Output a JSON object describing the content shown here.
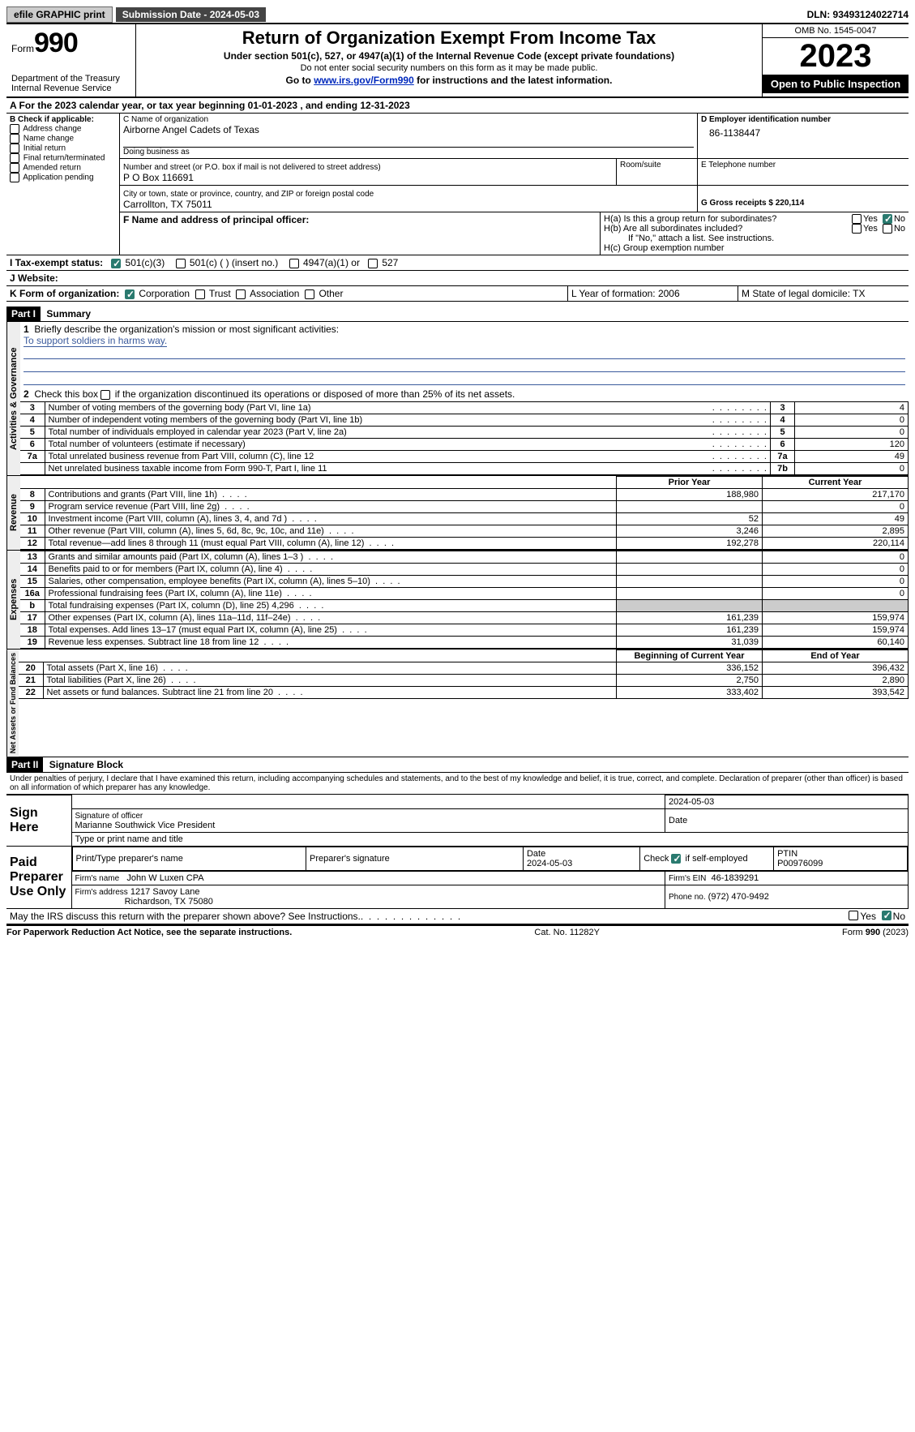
{
  "topbar": {
    "efile": "efile GRAPHIC print",
    "submission_label": "Submission Date - 2024-05-03",
    "dln_label": "DLN: 93493124022714"
  },
  "header": {
    "form_prefix": "Form",
    "form_number": "990",
    "dept": "Department of the Treasury\nInternal Revenue Service",
    "title": "Return of Organization Exempt From Income Tax",
    "sub1": "Under section 501(c), 527, or 4947(a)(1) of the Internal Revenue Code (except private foundations)",
    "sub2": "Do not enter social security numbers on this form as it may be made public.",
    "sub3_pre": "Go to ",
    "sub3_link": "www.irs.gov/Form990",
    "sub3_post": " for instructions and the latest information.",
    "omb": "OMB No. 1545-0047",
    "taxyear": "2023",
    "open_pub": "Open to Public Inspection"
  },
  "sectionA": {
    "line": "A For the 2023 calendar year, or tax year beginning 01-01-2023   , and ending 12-31-2023"
  },
  "sectionB": {
    "title": "B Check if applicable:",
    "opts": [
      "Address change",
      "Name change",
      "Initial return",
      "Final return/terminated",
      "Amended return",
      "Application pending"
    ]
  },
  "sectionC": {
    "name_label": "C Name of organization",
    "name": "Airborne Angel Cadets of Texas",
    "dba_label": "Doing business as",
    "addr_label": "Number and street (or P.O. box if mail is not delivered to street address)",
    "room_label": "Room/suite",
    "addr": "P O Box 116691",
    "city_label": "City or town, state or province, country, and ZIP or foreign postal code",
    "city": "Carrollton, TX  75011"
  },
  "sectionD": {
    "label": "D Employer identification number",
    "value": "86-1138447"
  },
  "sectionE": {
    "label": "E Telephone number"
  },
  "sectionG": {
    "label": "G Gross receipts $ 220,114"
  },
  "sectionF": {
    "label": "F  Name and address of principal officer:"
  },
  "sectionH": {
    "a": "H(a)  Is this a group return for subordinates?",
    "b": "H(b)  Are all subordinates included?",
    "bnote": "If \"No,\" attach a list. See instructions.",
    "c": "H(c)  Group exemption number",
    "yes": "Yes",
    "no": "No"
  },
  "sectionI": {
    "label": "I  Tax-exempt status:",
    "o1": "501(c)(3)",
    "o2": "501(c) (  ) (insert no.)",
    "o3": "4947(a)(1) or",
    "o4": "527"
  },
  "sectionJ": {
    "label": "J  Website:"
  },
  "sectionK": {
    "label": "K Form of organization:",
    "o1": "Corporation",
    "o2": "Trust",
    "o3": "Association",
    "o4": "Other"
  },
  "sectionL": {
    "label": "L Year of formation: 2006"
  },
  "sectionM": {
    "label": "M State of legal domicile: TX"
  },
  "partI": {
    "hdr": "Part I",
    "title": "Summary",
    "q1": "Briefly describe the organization's mission or most significant activities:",
    "mission": "To support soldiers in harms way.",
    "q2": "Check this box      if the organization discontinued its operations or disposed of more than 25% of its net assets.",
    "rows_gov": [
      {
        "n": "3",
        "d": "Number of voting members of the governing body (Part VI, line 1a)",
        "c": "3",
        "v": "4"
      },
      {
        "n": "4",
        "d": "Number of independent voting members of the governing body (Part VI, line 1b)",
        "c": "4",
        "v": "0"
      },
      {
        "n": "5",
        "d": "Total number of individuals employed in calendar year 2023 (Part V, line 2a)",
        "c": "5",
        "v": "0"
      },
      {
        "n": "6",
        "d": "Total number of volunteers (estimate if necessary)",
        "c": "6",
        "v": "120"
      },
      {
        "n": "7a",
        "d": "Total unrelated business revenue from Part VIII, column (C), line 12",
        "c": "7a",
        "v": "49"
      },
      {
        "n": "",
        "d": "Net unrelated business taxable income from Form 990-T, Part I, line 11",
        "c": "7b",
        "v": "0"
      }
    ],
    "sec_gov": "Activities & Governance",
    "sec_rev": "Revenue",
    "sec_exp": "Expenses",
    "sec_net": "Net Assets or Fund Balances",
    "col_prior": "Prior Year",
    "col_current": "Current Year",
    "rows_rev": [
      {
        "n": "8",
        "d": "Contributions and grants (Part VIII, line 1h)",
        "p": "188,980",
        "c": "217,170"
      },
      {
        "n": "9",
        "d": "Program service revenue (Part VIII, line 2g)",
        "p": "",
        "c": "0"
      },
      {
        "n": "10",
        "d": "Investment income (Part VIII, column (A), lines 3, 4, and 7d )",
        "p": "52",
        "c": "49"
      },
      {
        "n": "11",
        "d": "Other revenue (Part VIII, column (A), lines 5, 6d, 8c, 9c, 10c, and 11e)",
        "p": "3,246",
        "c": "2,895"
      },
      {
        "n": "12",
        "d": "Total revenue—add lines 8 through 11 (must equal Part VIII, column (A), line 12)",
        "p": "192,278",
        "c": "220,114"
      }
    ],
    "rows_exp": [
      {
        "n": "13",
        "d": "Grants and similar amounts paid (Part IX, column (A), lines 1–3 )",
        "p": "",
        "c": "0"
      },
      {
        "n": "14",
        "d": "Benefits paid to or for members (Part IX, column (A), line 4)",
        "p": "",
        "c": "0"
      },
      {
        "n": "15",
        "d": "Salaries, other compensation, employee benefits (Part IX, column (A), lines 5–10)",
        "p": "",
        "c": "0"
      },
      {
        "n": "16a",
        "d": "Professional fundraising fees (Part IX, column (A), line 11e)",
        "p": "",
        "c": "0"
      },
      {
        "n": "b",
        "d": "Total fundraising expenses (Part IX, column (D), line 25) 4,296",
        "p": "GREY",
        "c": "GREY"
      },
      {
        "n": "17",
        "d": "Other expenses (Part IX, column (A), lines 11a–11d, 11f–24e)",
        "p": "161,239",
        "c": "159,974"
      },
      {
        "n": "18",
        "d": "Total expenses. Add lines 13–17 (must equal Part IX, column (A), line 25)",
        "p": "161,239",
        "c": "159,974"
      },
      {
        "n": "19",
        "d": "Revenue less expenses. Subtract line 18 from line 12",
        "p": "31,039",
        "c": "60,140"
      }
    ],
    "col_beg": "Beginning of Current Year",
    "col_end": "End of Year",
    "rows_net": [
      {
        "n": "20",
        "d": "Total assets (Part X, line 16)",
        "p": "336,152",
        "c": "396,432"
      },
      {
        "n": "21",
        "d": "Total liabilities (Part X, line 26)",
        "p": "2,750",
        "c": "2,890"
      },
      {
        "n": "22",
        "d": "Net assets or fund balances. Subtract line 21 from line 20",
        "p": "333,402",
        "c": "393,542"
      }
    ]
  },
  "partII": {
    "hdr": "Part II",
    "title": "Signature Block",
    "decl": "Under penalties of perjury, I declare that I have examined this return, including accompanying schedules and statements, and to the best of my knowledge and belief, it is true, correct, and complete. Declaration of preparer (other than officer) is based on all information of which preparer has any knowledge.",
    "sign_here": "Sign Here",
    "sig_officer_label": "Signature of officer",
    "sig_officer": "Marianne Southwick  Vice President",
    "sig_type_label": "Type or print name and title",
    "sig_date": "2024-05-03",
    "date_label": "Date",
    "paid": "Paid Preparer Use Only",
    "prep_name_label": "Print/Type preparer's name",
    "prep_sig_label": "Preparer's signature",
    "prep_date": "2024-05-03",
    "self_emp": "Check         if self-employed",
    "ptin_label": "PTIN",
    "ptin": "P00976099",
    "firm_name_label": "Firm's name",
    "firm_name": "John W Luxen CPA",
    "firm_ein_label": "Firm's EIN",
    "firm_ein": "46-1839291",
    "firm_addr_label": "Firm's address",
    "firm_addr1": "1217 Savoy Lane",
    "firm_addr2": "Richardson, TX  75080",
    "phone_label": "Phone no.",
    "phone": "(972) 470-9492",
    "discuss": "May the IRS discuss this return with the preparer shown above? See Instructions."
  },
  "footer": {
    "left": "For Paperwork Reduction Act Notice, see the separate instructions.",
    "mid": "Cat. No. 11282Y",
    "right": "Form 990 (2023)"
  }
}
